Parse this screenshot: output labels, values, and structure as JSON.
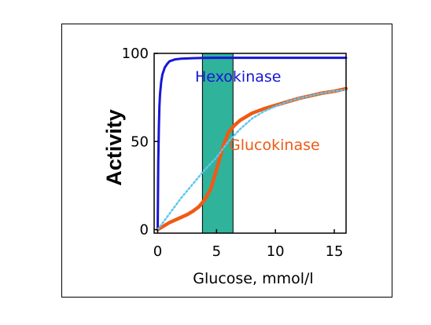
{
  "chart_data": {
    "type": "line",
    "xlabel": "Glucose, mmol/l",
    "ylabel": "Activity",
    "xlim": [
      -0.3,
      16
    ],
    "ylim": [
      -2,
      100
    ],
    "x_ticks": [
      0,
      5,
      10,
      15
    ],
    "y_ticks": [
      0,
      50,
      100
    ],
    "grid": false,
    "highlight_band": {
      "x": [
        3.8,
        6.4
      ],
      "color": "#2fb39a"
    },
    "series": [
      {
        "name": "Hexokinase",
        "color": "#1717d6",
        "style": "solid",
        "x": [
          0,
          0.05,
          0.1,
          0.15,
          0.2,
          0.3,
          0.4,
          0.6,
          0.8,
          1.0,
          1.5,
          2.0,
          3,
          4,
          5,
          6,
          8,
          10,
          12,
          14,
          16
        ],
        "y": [
          0,
          38,
          58,
          70,
          77,
          84,
          88,
          92,
          94,
          95.5,
          96.6,
          97,
          97.3,
          97.4,
          97.5,
          97.5,
          97.5,
          97.5,
          97.5,
          97.5,
          97.5
        ]
      },
      {
        "name": "Glucokinase",
        "color": "#f05a14",
        "style": "solid",
        "x": [
          0,
          0.5,
          1,
          1.5,
          2,
          2.5,
          3,
          3.5,
          4,
          4.5,
          5,
          5.5,
          6,
          6.5,
          7,
          8,
          9,
          10,
          11,
          12,
          13,
          14,
          15,
          16
        ],
        "y": [
          0,
          2,
          4,
          5.5,
          7,
          8.5,
          10.5,
          13,
          17,
          23,
          34,
          46,
          55,
          59,
          62,
          66,
          68.5,
          70.5,
          72.5,
          74.5,
          76,
          77.5,
          78.5,
          80
        ]
      },
      {
        "name": "",
        "color": "#5ec7f0",
        "style": "dotted",
        "x": [
          0,
          1,
          2,
          3,
          4,
          5,
          6,
          7,
          8,
          9,
          10,
          11,
          12,
          13,
          14,
          15,
          16
        ],
        "y": [
          0,
          9,
          18,
          26,
          34,
          41,
          50,
          57,
          63,
          67,
          70,
          72.5,
          74.5,
          76,
          77.5,
          78.5,
          79.5
        ]
      }
    ]
  }
}
